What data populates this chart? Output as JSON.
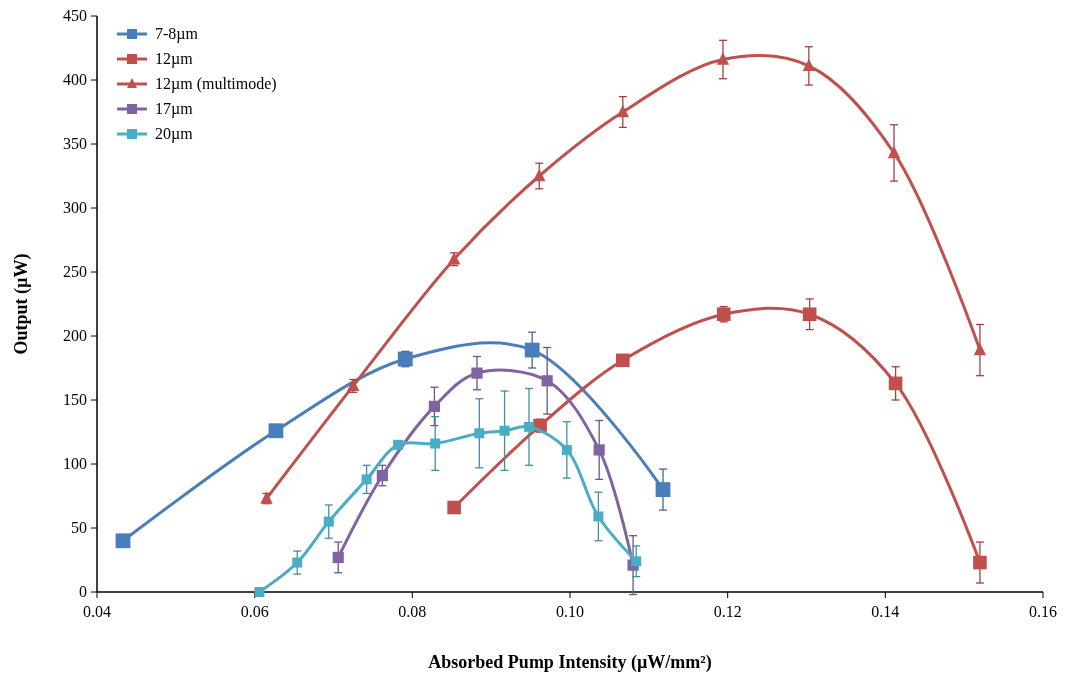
{
  "chart_data": {
    "type": "line",
    "xlabel": "Absorbed Pump Intensity (µW/mm²)",
    "ylabel": "Output (µW)",
    "xlim": [
      0.04,
      0.16
    ],
    "xticks": [
      {
        "value": 0.04,
        "label": "0.04"
      },
      {
        "value": 0.06,
        "label": "0.06"
      },
      {
        "value": 0.08,
        "label": "0.08"
      },
      {
        "value": 0.1,
        "label": "0.10"
      },
      {
        "value": 0.12,
        "label": "0.12"
      },
      {
        "value": 0.14,
        "label": "0.14"
      },
      {
        "value": 0.16,
        "label": "0.16"
      }
    ],
    "ylim": [
      0,
      450
    ],
    "yticks": [
      0,
      50,
      100,
      150,
      200,
      250,
      300,
      350,
      400,
      450
    ],
    "grid": false,
    "legend": "top left",
    "line_style": "solid",
    "series": [
      {
        "name": "7-8µm",
        "color": "#4a7ebb",
        "marker": "square",
        "x": [
          0.0433,
          0.0627,
          0.0791,
          0.0952,
          0.1118
        ],
        "values": [
          40,
          126,
          182,
          189,
          80
        ],
        "errors": [
          null,
          3,
          6,
          14,
          16
        ]
      },
      {
        "name": "12µm",
        "color": "#c0504d",
        "marker": "square",
        "x": [
          0.0853,
          0.0962,
          0.1067,
          0.1195,
          0.1304,
          0.1413,
          0.152
        ],
        "values": [
          66,
          130,
          181,
          217,
          217,
          163,
          23
        ],
        "errors": [
          2,
          5,
          4,
          6,
          12,
          13,
          16
        ]
      },
      {
        "name": "12µm (multimode)",
        "color": "#c0504d",
        "marker": "triangle",
        "x": [
          0.0615,
          0.0725,
          0.0853,
          0.0961,
          0.1067,
          0.1194,
          0.1303,
          0.1411,
          0.152
        ],
        "values": [
          73,
          161,
          260,
          325,
          375,
          416,
          411,
          343,
          189
        ],
        "errors": [
          4,
          5,
          5,
          10,
          12,
          15,
          15,
          22,
          20
        ]
      },
      {
        "name": "17µm",
        "color": "#8064a2",
        "marker": "square",
        "x": [
          0.0706,
          0.0762,
          0.0828,
          0.0882,
          0.0971,
          0.1037,
          0.108
        ],
        "values": [
          27,
          91,
          145,
          171,
          165,
          111,
          21
        ],
        "errors": [
          12,
          8,
          15,
          13,
          26,
          23,
          23
        ]
      },
      {
        "name": "20µm",
        "color": "#4bacc6",
        "marker": "square",
        "x": [
          0.0606,
          0.0654,
          0.0694,
          0.0742,
          0.0782,
          0.0829,
          0.0885,
          0.0917,
          0.0948,
          0.0996,
          0.1036,
          0.1084
        ],
        "values": [
          0,
          23,
          55,
          88,
          115,
          116,
          124,
          126,
          129,
          111,
          59,
          24
        ],
        "errors": [
          null,
          9,
          13,
          11,
          3,
          21,
          27,
          31,
          30,
          22,
          19,
          12
        ]
      }
    ]
  }
}
